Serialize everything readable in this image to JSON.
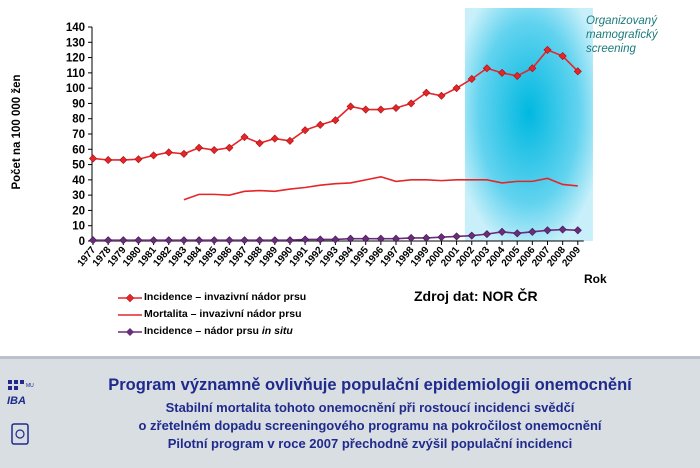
{
  "chart_data": {
    "type": "line",
    "ylabel": "Počet na 100 000 žen",
    "xlabel": "Rok",
    "ylim": [
      0,
      140
    ],
    "yticks": [
      0,
      10,
      20,
      30,
      40,
      50,
      60,
      70,
      80,
      90,
      100,
      110,
      120,
      130,
      140
    ],
    "x": [
      "1977",
      "1978",
      "1979",
      "1980",
      "1981",
      "1982",
      "1983",
      "1984",
      "1985",
      "1986",
      "1987",
      "1988",
      "1989",
      "1990",
      "1991",
      "1992",
      "1993",
      "1994",
      "1995",
      "1996",
      "1997",
      "1998",
      "1999",
      "2000",
      "2001",
      "2002",
      "2003",
      "2004",
      "2005",
      "2006",
      "2007",
      "2008",
      "2009"
    ],
    "series": [
      {
        "name": "Incidence – invazivní nádor prsu",
        "color": "#e4262a",
        "marker": "diamond",
        "values": [
          54,
          53,
          53,
          53.5,
          56,
          58,
          57,
          61,
          59.5,
          61,
          68,
          64,
          67,
          65.5,
          72.5,
          76,
          79,
          88,
          86,
          86,
          87,
          90,
          97,
          95,
          100,
          106,
          113,
          110,
          108,
          113,
          125,
          121,
          111
        ]
      },
      {
        "name": "Mortalita – invazivní nádor prsu",
        "color": "#e4262a",
        "marker": "none",
        "values": [
          null,
          null,
          null,
          null,
          null,
          null,
          27,
          30.5,
          30.5,
          30,
          32.5,
          33,
          32.5,
          34,
          35,
          36.5,
          37.5,
          38,
          40,
          42,
          39,
          40,
          40,
          39.5,
          40,
          40,
          40,
          38,
          39,
          39,
          41,
          37,
          36
        ]
      },
      {
        "name": "Incidence – nádor prsu in situ",
        "color": "#6a2d7a",
        "marker": "diamond",
        "values": [
          0.5,
          0.5,
          0.5,
          0.5,
          0.5,
          0.5,
          0.5,
          0.5,
          0.5,
          0.5,
          0.5,
          0.5,
          0.5,
          0.5,
          1,
          1,
          1,
          1.5,
          1.5,
          1.5,
          1.5,
          2,
          2,
          2.5,
          3,
          3.5,
          4.5,
          6,
          5,
          6,
          7,
          7.5,
          7
        ]
      }
    ],
    "annotation": "Organizovaný mamografický screening",
    "annotation_range": [
      "2001",
      "2009"
    ],
    "grid": false
  },
  "legend": {
    "item1": "Incidence – invazivní nádor prsu",
    "item2": "Mortalita – invazivní nádor prsu",
    "item3_prefix": "Incidence – nádor prsu ",
    "item3_italic": "in situ"
  },
  "source": "Zdroj dat: NOR ČR",
  "footer": {
    "heading": "Program významně ovlivňuje populační epidemiologii onemocnění",
    "lines": [
      "Stabilní mortalita tohoto onemocnění při rostoucí incidenci svědčí",
      "o zřetelném dopadu screeningového programu na pokročilost onemocnění",
      "Pilotní program v roce 2007 přechodně zvýšil populační incidenci"
    ]
  },
  "logo": {
    "text": "IBA",
    "small": "MU"
  },
  "colors": {
    "accent": "#1f2a8c",
    "incidence": "#e4262a",
    "insitu": "#6a2d7a",
    "screening": "#1a7a7a"
  }
}
